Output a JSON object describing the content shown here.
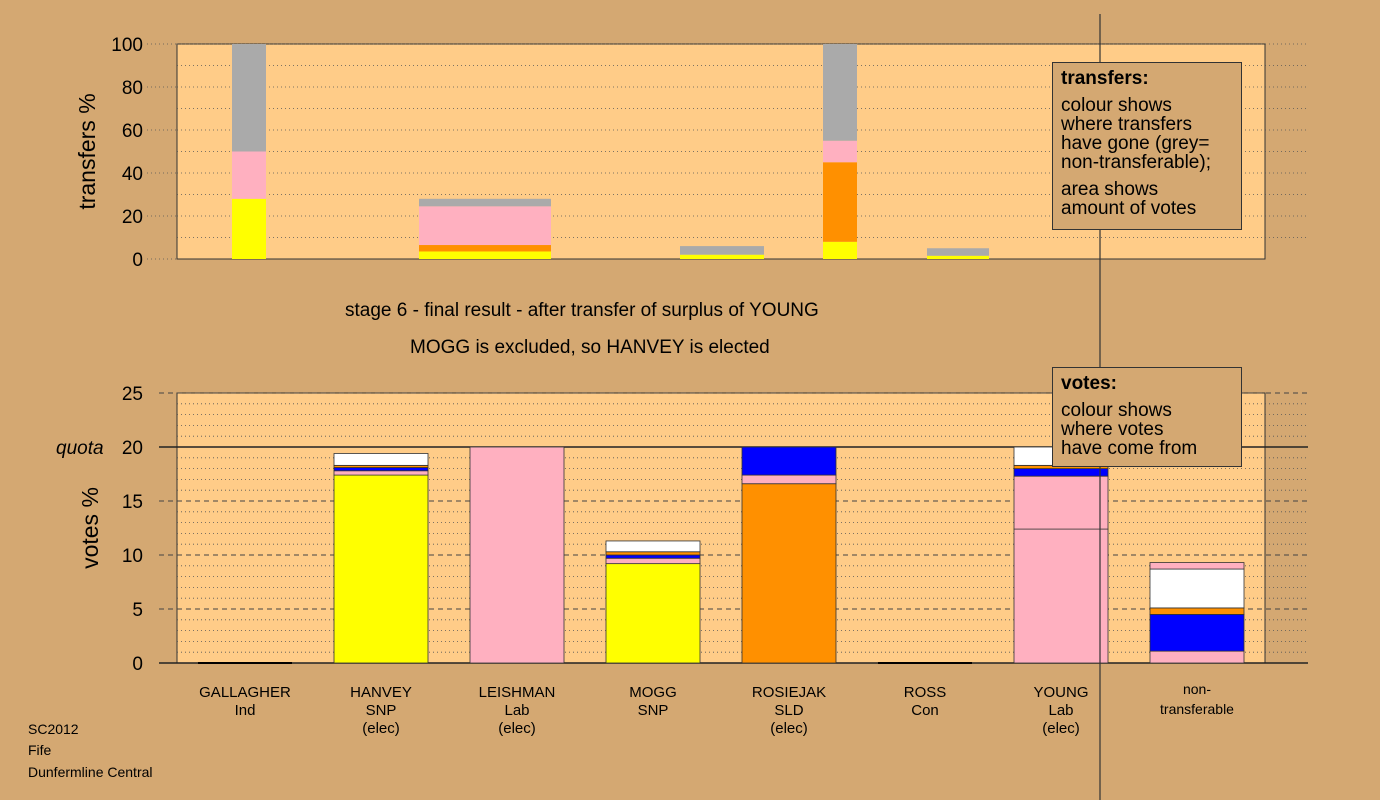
{
  "chart_data": [
    {
      "type": "bar",
      "stacked": true,
      "panel": "transfers",
      "ylabel": "transfers %",
      "ylim": [
        0,
        100
      ],
      "yticks": [
        0,
        20,
        40,
        60,
        80,
        100
      ],
      "categories": [
        "GALLAGHER",
        "HANVEY",
        "LEISHMAN",
        "MOGG",
        "ROSIEJAK",
        "ROSS",
        "YOUNG"
      ],
      "bars": [
        {
          "category": "GALLAGHER",
          "segments": [
            {
              "color": "#ffff00",
              "value": 28
            },
            {
              "color": "#ffb0c0",
              "value": 22
            },
            {
              "color": "#aaaaaa",
              "value": 50
            }
          ]
        },
        {
          "category": "LEISHMAN",
          "segments": [
            {
              "color": "#ffff00",
              "value": 3.5
            },
            {
              "color": "#ff9000",
              "value": 3
            },
            {
              "color": "#ffb0c0",
              "value": 18
            },
            {
              "color": "#aaaaaa",
              "value": 3.5
            }
          ]
        },
        {
          "category": "ROSIEJAK",
          "segments": [
            {
              "color": "#ffff00",
              "value": 2
            },
            {
              "color": "#aaaaaa",
              "value": 4
            }
          ]
        },
        {
          "category": "YOUNG",
          "segments": [
            {
              "color": "#ffff00",
              "value": 8
            },
            {
              "color": "#ff9000",
              "value": 37
            },
            {
              "color": "#ffb0c0",
              "value": 10
            },
            {
              "color": "#aaaaaa",
              "value": 45
            }
          ]
        },
        {
          "category": "non-transferable",
          "segments": [
            {
              "color": "#ffff00",
              "value": 1.5
            },
            {
              "color": "#aaaaaa",
              "value": 3.5
            }
          ]
        }
      ]
    },
    {
      "type": "bar",
      "stacked": true,
      "panel": "votes",
      "ylabel": "votes %",
      "ylim": [
        0,
        25
      ],
      "yticks": [
        0,
        5,
        10,
        15,
        20,
        25
      ],
      "quota": 20,
      "quota_label": "quota",
      "categories": [
        "GALLAGHER",
        "HANVEY",
        "LEISHMAN",
        "MOGG",
        "ROSIEJAK",
        "ROSS",
        "YOUNG",
        "non-transferable"
      ],
      "bars": [
        {
          "segments": []
        },
        {
          "segments": [
            {
              "color": "#ffff00",
              "value": 17.4
            },
            {
              "color": "#ffb0c0",
              "value": 0.4
            },
            {
              "color": "#0000ff",
              "value": 0.3
            },
            {
              "color": "#ff9000",
              "value": 0.2
            },
            {
              "color": "#ffffff",
              "value": 1.1
            }
          ]
        },
        {
          "segments": [
            {
              "color": "#ffb0c0",
              "value": 20
            }
          ]
        },
        {
          "segments": [
            {
              "color": "#ffff00",
              "value": 9.2
            },
            {
              "color": "#ffb0c0",
              "value": 0.5
            },
            {
              "color": "#0000ff",
              "value": 0.3
            },
            {
              "color": "#ff9000",
              "value": 0.3
            },
            {
              "color": "#ffffff",
              "value": 1
            }
          ]
        },
        {
          "segments": [
            {
              "color": "#ff9000",
              "value": 16.6
            },
            {
              "color": "#ffb0c0",
              "value": 0.8
            },
            {
              "color": "#0000ff",
              "value": 2.6
            }
          ]
        },
        {
          "segments": []
        },
        {
          "segments": [
            {
              "color": "#ffb0c0",
              "value": 12.4
            },
            {
              "color": "#ffb0c0",
              "value": 4.9
            },
            {
              "color": "#0000ff",
              "value": 0.7
            },
            {
              "color": "#ff9000",
              "value": 0.3
            },
            {
              "color": "#ffffff",
              "value": 1.7
            }
          ]
        },
        {
          "segments": [
            {
              "color": "#ffb0c0",
              "value": 1.1
            },
            {
              "color": "#0000ff",
              "value": 3.4
            },
            {
              "color": "#ff9000",
              "value": 0.6
            },
            {
              "color": "#ffffff",
              "value": 3.6
            },
            {
              "color": "#ffb0c0",
              "value": 0.6
            }
          ]
        }
      ]
    }
  ],
  "candidates": [
    {
      "name": "GALLAGHER",
      "party": "Ind",
      "status": ""
    },
    {
      "name": "HANVEY",
      "party": "SNP",
      "status": "(elec)"
    },
    {
      "name": "LEISHMAN",
      "party": "Lab",
      "status": "(elec)"
    },
    {
      "name": "MOGG",
      "party": "SNP",
      "status": ""
    },
    {
      "name": "ROSIEJAK",
      "party": "SLD",
      "status": "(elec)"
    },
    {
      "name": "ROSS",
      "party": "Con",
      "status": ""
    },
    {
      "name": "YOUNG",
      "party": "Lab",
      "status": "(elec)"
    }
  ],
  "nontransferable_label": [
    "non-",
    "transferable"
  ],
  "captions": {
    "stage": "stage 6 - final result - after transfer of surplus of YOUNG",
    "outcome": "MOGG is excluded, so HANVEY is elected"
  },
  "legend_transfers": {
    "title": "transfers:",
    "lines": [
      "colour shows",
      "where transfers",
      "have gone (grey=",
      "non-transferable);"
    ],
    "lines2": [
      "area shows",
      "amount of votes"
    ]
  },
  "legend_votes": {
    "title": "votes:",
    "lines": [
      "colour shows",
      "where votes",
      "have come from"
    ]
  },
  "footer": [
    "SC2012",
    "Fife",
    "Dunfermline Central"
  ],
  "colors": {
    "background": "#d4a872",
    "plot_bg": "#ffcc88",
    "yellow": "#ffff00",
    "pink": "#ffb0c0",
    "orange": "#ff9000",
    "blue": "#0000ff",
    "grey": "#aaaaaa"
  }
}
